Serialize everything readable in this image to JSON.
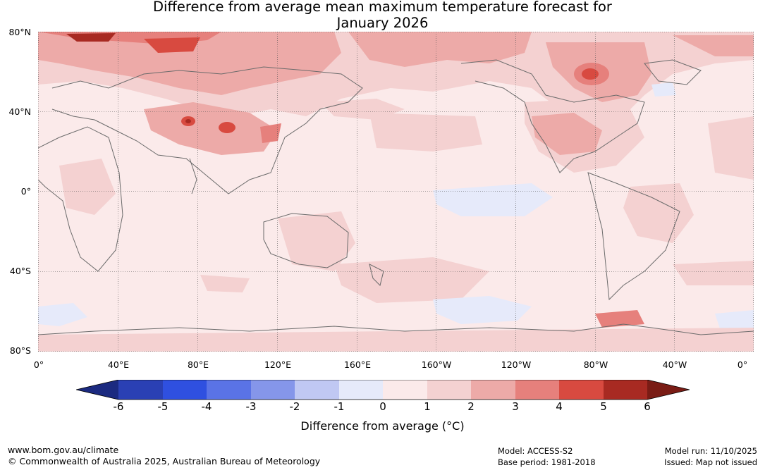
{
  "title": {
    "line1": "Difference from average mean maximum temperature forecast for",
    "line2": "January 2026"
  },
  "map": {
    "lat_labels": [
      "80°N",
      "40°N",
      "0°",
      "40°S",
      "80°S"
    ],
    "lon_labels": [
      "0°",
      "40°E",
      "80°E",
      "120°E",
      "160°E",
      "160°W",
      "120°W",
      "80°W",
      "40°W",
      "0°"
    ],
    "bg_color": "#fbeaea",
    "coast_color": "#6b6b6b"
  },
  "colorbar": {
    "ticks": [
      "-6",
      "-5",
      "-4",
      "-3",
      "-2",
      "-1",
      "0",
      "1",
      "2",
      "3",
      "4",
      "5",
      "6"
    ],
    "colors": [
      "#1b2a80",
      "#2a40b4",
      "#2f50e0",
      "#5a73e6",
      "#8596ea",
      "#c0c8f3",
      "#e6eafa",
      "#fbeaea",
      "#f4d1d1",
      "#edaaa8",
      "#e6807c",
      "#d84a40",
      "#a82a22",
      "#7a1c15"
    ],
    "label": "Difference from average (°C)"
  },
  "footer": {
    "website": "www.bom.gov.au/climate",
    "copyright": "© Commonwealth of Australia 2025, Australian Bureau of Meteorology",
    "model": "Model: ACCESS-S2",
    "base_period": "Base period: 1981-2018",
    "model_run": "Model run: 11/10/2025",
    "issued": "Issued: Map not issued"
  }
}
